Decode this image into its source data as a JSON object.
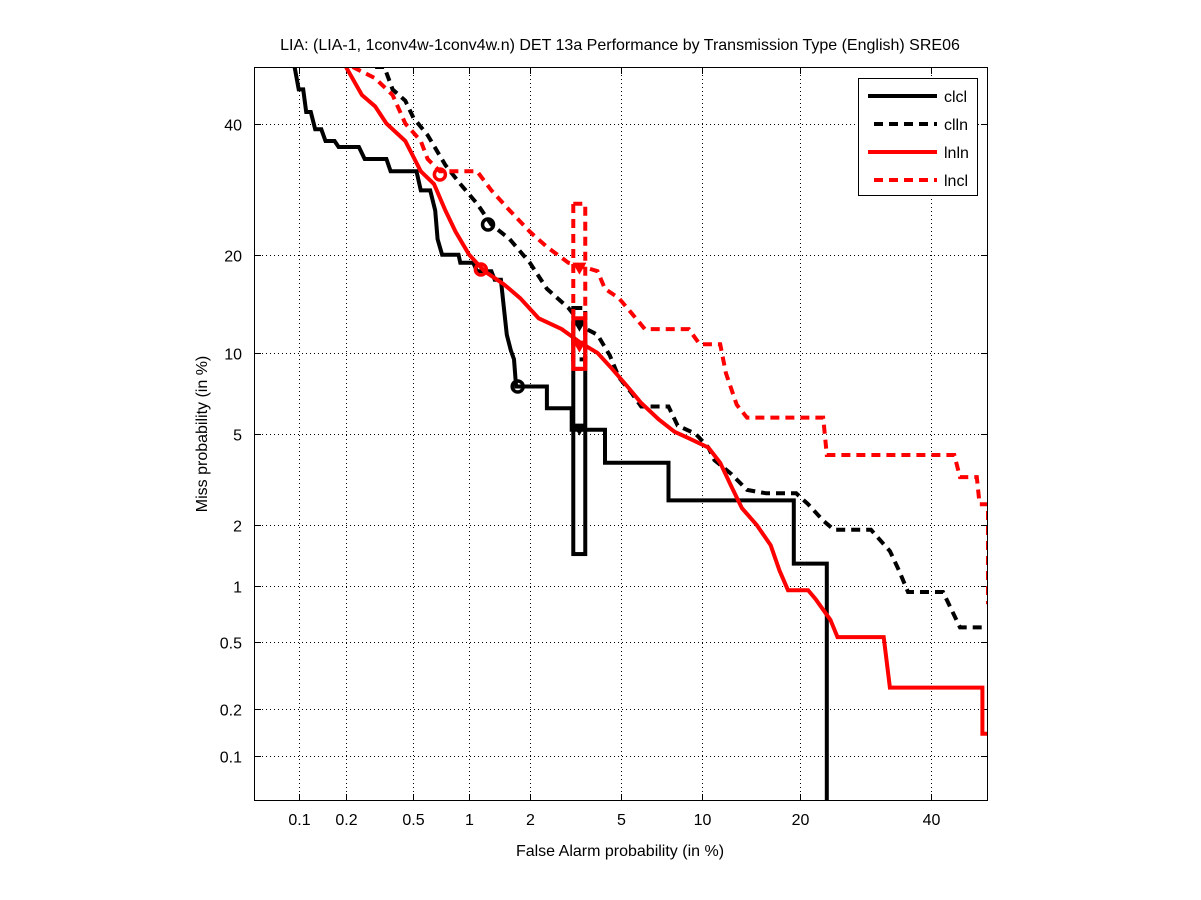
{
  "chart_data": {
    "type": "line",
    "title": "LIA: (LIA-1, 1conv4w-1conv4w.n) DET 13a Performance by Transmission Type (English) SRE06",
    "xlabel": "False Alarm probability (in %)",
    "ylabel": "Miss probability (in %)",
    "scale": "normal-deviate",
    "xlim": [
      0.05,
      50
    ],
    "ylim": [
      0.05,
      50
    ],
    "xticks": [
      "0.1",
      "0.2",
      "0.5",
      "1",
      "2",
      "5",
      "10",
      "20",
      "40"
    ],
    "yticks": [
      "0.1",
      "0.2",
      "0.5",
      "1",
      "2",
      "5",
      "10",
      "20",
      "40"
    ],
    "grid": true,
    "legend_position": "top-right",
    "series": [
      {
        "name": "clcl",
        "color": "#000000",
        "style": "solid",
        "points": [
          [
            0.094,
            50
          ],
          [
            0.1,
            46
          ],
          [
            0.107,
            46
          ],
          [
            0.112,
            42
          ],
          [
            0.12,
            42
          ],
          [
            0.128,
            39
          ],
          [
            0.14,
            39
          ],
          [
            0.149,
            37
          ],
          [
            0.17,
            37
          ],
          [
            0.18,
            36
          ],
          [
            0.24,
            36
          ],
          [
            0.26,
            34
          ],
          [
            0.35,
            34
          ],
          [
            0.37,
            32
          ],
          [
            0.52,
            32
          ],
          [
            0.55,
            29
          ],
          [
            0.62,
            29
          ],
          [
            0.66,
            26
          ],
          [
            0.68,
            22
          ],
          [
            0.72,
            20
          ],
          [
            0.88,
            20
          ],
          [
            0.9,
            19
          ],
          [
            1.05,
            19
          ],
          [
            1.1,
            18
          ],
          [
            1.3,
            18
          ],
          [
            1.35,
            17
          ],
          [
            1.45,
            17
          ],
          [
            1.5,
            14
          ],
          [
            1.55,
            11.5
          ],
          [
            1.62,
            10.2
          ],
          [
            1.68,
            9.5
          ],
          [
            1.72,
            7.6
          ],
          [
            2.4,
            7.6
          ],
          [
            2.4,
            6.3
          ],
          [
            3.1,
            6.3
          ],
          [
            3.1,
            5.2
          ],
          [
            4.3,
            5.2
          ],
          [
            4.3,
            3.8
          ],
          [
            7.6,
            3.8
          ],
          [
            7.6,
            2.6
          ],
          [
            19.2,
            2.6
          ],
          [
            19.2,
            1.3
          ],
          [
            23.5,
            1.3
          ],
          [
            23.5,
            0.05
          ]
        ],
        "operating_point": [
          1.75,
          7.6
        ],
        "confidence_box": {
          "fa": [
            3.15,
            3.55
          ],
          "miss": [
            1.45,
            12.5
          ]
        },
        "actual_point": [
          3.35,
          5.2
        ]
      },
      {
        "name": "clln",
        "color": "#000000",
        "style": "dashed",
        "points": [
          [
            0.3,
            50
          ],
          [
            0.34,
            50
          ],
          [
            0.38,
            46
          ],
          [
            0.45,
            44
          ],
          [
            0.5,
            41
          ],
          [
            0.6,
            38
          ],
          [
            0.75,
            33
          ],
          [
            0.9,
            30
          ],
          [
            1.1,
            27
          ],
          [
            1.3,
            24
          ],
          [
            1.6,
            22
          ],
          [
            2.0,
            19
          ],
          [
            2.4,
            16
          ],
          [
            3.0,
            14
          ],
          [
            3.4,
            12.5
          ],
          [
            3.6,
            12
          ],
          [
            4.0,
            11.5
          ],
          [
            4.5,
            9.8
          ],
          [
            4.9,
            8.2
          ],
          [
            5.5,
            7.2
          ],
          [
            6.0,
            6.4
          ],
          [
            7.6,
            6.4
          ],
          [
            8.2,
            5.4
          ],
          [
            9.5,
            5.0
          ],
          [
            10.5,
            4.4
          ],
          [
            11,
            3.9
          ],
          [
            12.5,
            3.4
          ],
          [
            14,
            2.9
          ],
          [
            16,
            2.8
          ],
          [
            19.5,
            2.8
          ],
          [
            21,
            2.5
          ],
          [
            23,
            2.1
          ],
          [
            24.5,
            1.9
          ],
          [
            30,
            1.9
          ],
          [
            33,
            1.5
          ],
          [
            34.5,
            1.2
          ],
          [
            36,
            0.93
          ],
          [
            42,
            0.93
          ],
          [
            45,
            0.6
          ],
          [
            50,
            0.6
          ]
        ],
        "operating_point": [
          1.25,
          24
        ],
        "confidence_box": {
          "fa": [
            3.15,
            3.55
          ],
          "miss": [
            9.5,
            14
          ]
        },
        "actual_point": [
          3.35,
          12.3
        ]
      },
      {
        "name": "lnln",
        "color": "#ff0000",
        "style": "solid",
        "points": [
          [
            0.2,
            50
          ],
          [
            0.25,
            45
          ],
          [
            0.3,
            43
          ],
          [
            0.35,
            40
          ],
          [
            0.45,
            37
          ],
          [
            0.55,
            32
          ],
          [
            0.65,
            30
          ],
          [
            0.75,
            26
          ],
          [
            0.85,
            23
          ],
          [
            1.0,
            20
          ],
          [
            1.2,
            18
          ],
          [
            1.5,
            16.5
          ],
          [
            1.8,
            15
          ],
          [
            2.2,
            13
          ],
          [
            2.8,
            12
          ],
          [
            3.4,
            10.8
          ],
          [
            4.0,
            10
          ],
          [
            4.6,
            8.8
          ],
          [
            5.3,
            7.6
          ],
          [
            6.0,
            6.6
          ],
          [
            7.0,
            5.7
          ],
          [
            8.0,
            5.1
          ],
          [
            9.0,
            4.8
          ],
          [
            10.5,
            4.4
          ],
          [
            11.5,
            3.8
          ],
          [
            12.5,
            3.0
          ],
          [
            13.5,
            2.4
          ],
          [
            15,
            2.0
          ],
          [
            16.5,
            1.6
          ],
          [
            17.5,
            1.2
          ],
          [
            18.5,
            0.95
          ],
          [
            21,
            0.95
          ],
          [
            22,
            0.85
          ],
          [
            24,
            0.66
          ],
          [
            25,
            0.53
          ],
          [
            32,
            0.53
          ],
          [
            33,
            0.27
          ],
          [
            49,
            0.27
          ],
          [
            49,
            0.14
          ],
          [
            50,
            0.14
          ]
        ],
        "operating_point": [
          1.15,
          18.2
        ],
        "confidence_box": {
          "fa": [
            3.15,
            3.55
          ],
          "miss": [
            8.8,
            13
          ]
        },
        "actual_point": [
          3.35,
          10.5
        ]
      },
      {
        "name": "lncl",
        "color": "#ff0000",
        "style": "dashed",
        "points": [
          [
            0.22,
            50
          ],
          [
            0.3,
            48
          ],
          [
            0.38,
            45
          ],
          [
            0.45,
            40
          ],
          [
            0.55,
            37
          ],
          [
            0.6,
            34
          ],
          [
            0.7,
            32
          ],
          [
            1.1,
            32
          ],
          [
            1.3,
            29
          ],
          [
            1.6,
            26
          ],
          [
            2.0,
            23
          ],
          [
            2.4,
            21
          ],
          [
            3.0,
            19
          ],
          [
            3.5,
            18.5
          ],
          [
            4.0,
            18
          ],
          [
            4.3,
            16
          ],
          [
            4.9,
            15
          ],
          [
            5.5,
            13.5
          ],
          [
            6.2,
            12
          ],
          [
            9.0,
            12
          ],
          [
            9.8,
            10.7
          ],
          [
            11.5,
            10.7
          ],
          [
            12.0,
            8.5
          ],
          [
            13.0,
            6.5
          ],
          [
            14.0,
            5.8
          ],
          [
            23,
            5.8
          ],
          [
            23.5,
            4.1
          ],
          [
            44,
            4.1
          ],
          [
            45,
            3.3
          ],
          [
            48,
            3.3
          ],
          [
            48.5,
            2.5
          ],
          [
            50,
            2.5
          ],
          [
            50,
            0.8
          ]
        ],
        "operating_point": [
          0.7,
          31.5
        ],
        "confidence_box": {
          "fa": [
            3.15,
            3.55
          ],
          "miss": [
            8.8,
            27
          ]
        },
        "actual_point": [
          3.35,
          18.3
        ]
      }
    ]
  }
}
